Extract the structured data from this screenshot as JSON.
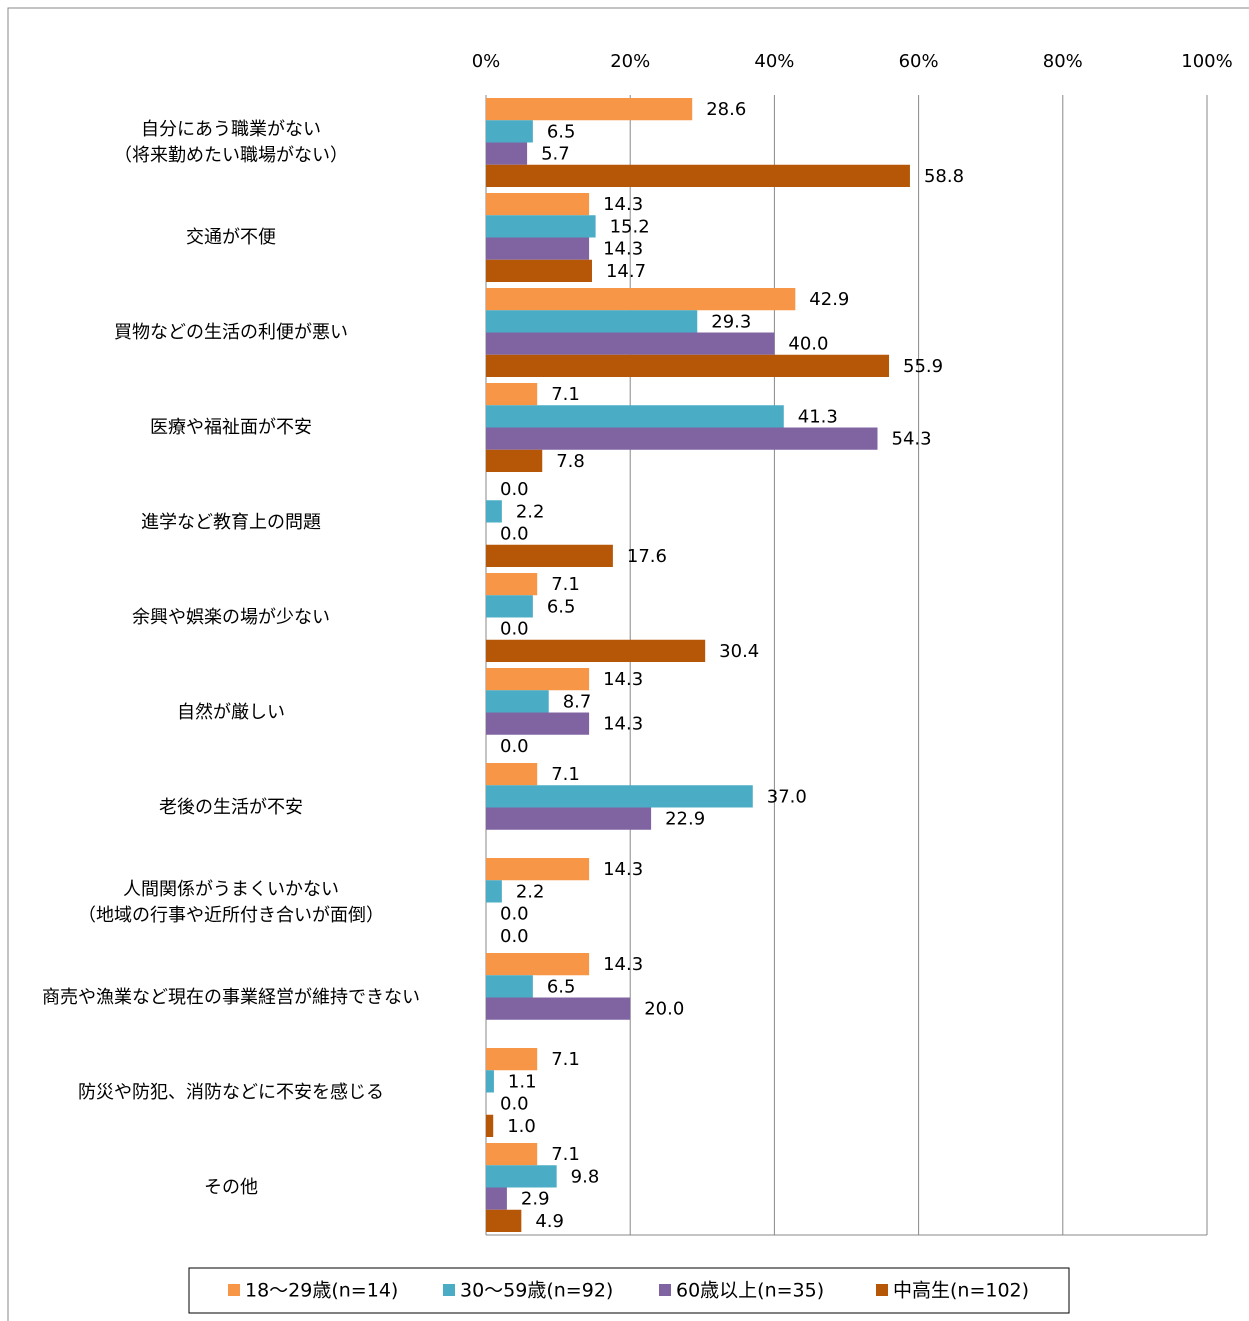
{
  "chart_data": {
    "type": "hbar",
    "categories": [
      "自分にあう職業がない\n（将来勤めたい職場がない）",
      "交通が不便",
      "買物などの生活の利便が悪い",
      "医療や福祉面が不安",
      "進学など教育上の問題",
      "余興や娯楽の場が少ない",
      "自然が厳しい",
      "老後の生活が不安",
      "人間関係がうまくいかない\n（地域の行事や近所付き合いが面倒）",
      "商売や漁業など現在の事業経営が維持できない",
      "防災や防犯、消防などに不安を感じる",
      "その他"
    ],
    "series": [
      {
        "name": "18～29歳(n=14)",
        "color": "#f79646",
        "values": [
          28.6,
          14.3,
          42.9,
          7.1,
          0.0,
          7.1,
          14.3,
          7.1,
          14.3,
          14.3,
          7.1,
          7.1
        ],
        "value_labels": [
          "28.6",
          "14.3",
          "42.9",
          "7.1",
          "0.0",
          "7.1",
          "14.3",
          "7.1",
          "14.3",
          "14.3",
          "7.1",
          "7.1"
        ]
      },
      {
        "name": "30～59歳(n=92)",
        "color": "#4bacc6",
        "values": [
          6.5,
          15.2,
          29.3,
          41.3,
          2.2,
          6.5,
          8.7,
          37.0,
          2.2,
          6.5,
          1.1,
          9.8
        ],
        "value_labels": [
          "6.5",
          "15.2",
          "29.3",
          "41.3",
          "2.2",
          "6.5",
          "8.7",
          "37.0",
          "2.2",
          "6.5",
          "1.1",
          "9.8"
        ]
      },
      {
        "name": "60歳以上(n=35)",
        "color": "#8064a2",
        "values": [
          5.7,
          14.3,
          40.0,
          54.3,
          0.0,
          0.0,
          14.3,
          22.9,
          0.0,
          20.0,
          0.0,
          2.9
        ],
        "value_labels": [
          "5.7",
          "14.3",
          "40.0",
          "54.3",
          "0.0",
          "0.0",
          "14.3",
          "22.9",
          "0.0",
          "20.0",
          "0.0",
          "2.9"
        ]
      },
      {
        "name": "中高生(n=102)",
        "color": "#b65708",
        "values": [
          58.8,
          14.7,
          55.9,
          7.8,
          17.6,
          30.4,
          0.0,
          null,
          0.0,
          null,
          1.0,
          4.9
        ],
        "value_labels": [
          "58.8",
          "14.7",
          "55.9",
          "7.8",
          "17.6",
          "30.4",
          "0.0",
          null,
          "0.0",
          null,
          "1.0",
          "4.9"
        ]
      }
    ],
    "xlim": [
      0,
      100
    ],
    "xticks": [
      {
        "value": 0,
        "label": "0%"
      },
      {
        "value": 20,
        "label": "20%"
      },
      {
        "value": 40,
        "label": "40%"
      },
      {
        "value": 60,
        "label": "60%"
      },
      {
        "value": 80,
        "label": "80%"
      },
      {
        "value": 100,
        "label": "100%"
      }
    ],
    "grid": true,
    "legend": "bottom"
  }
}
